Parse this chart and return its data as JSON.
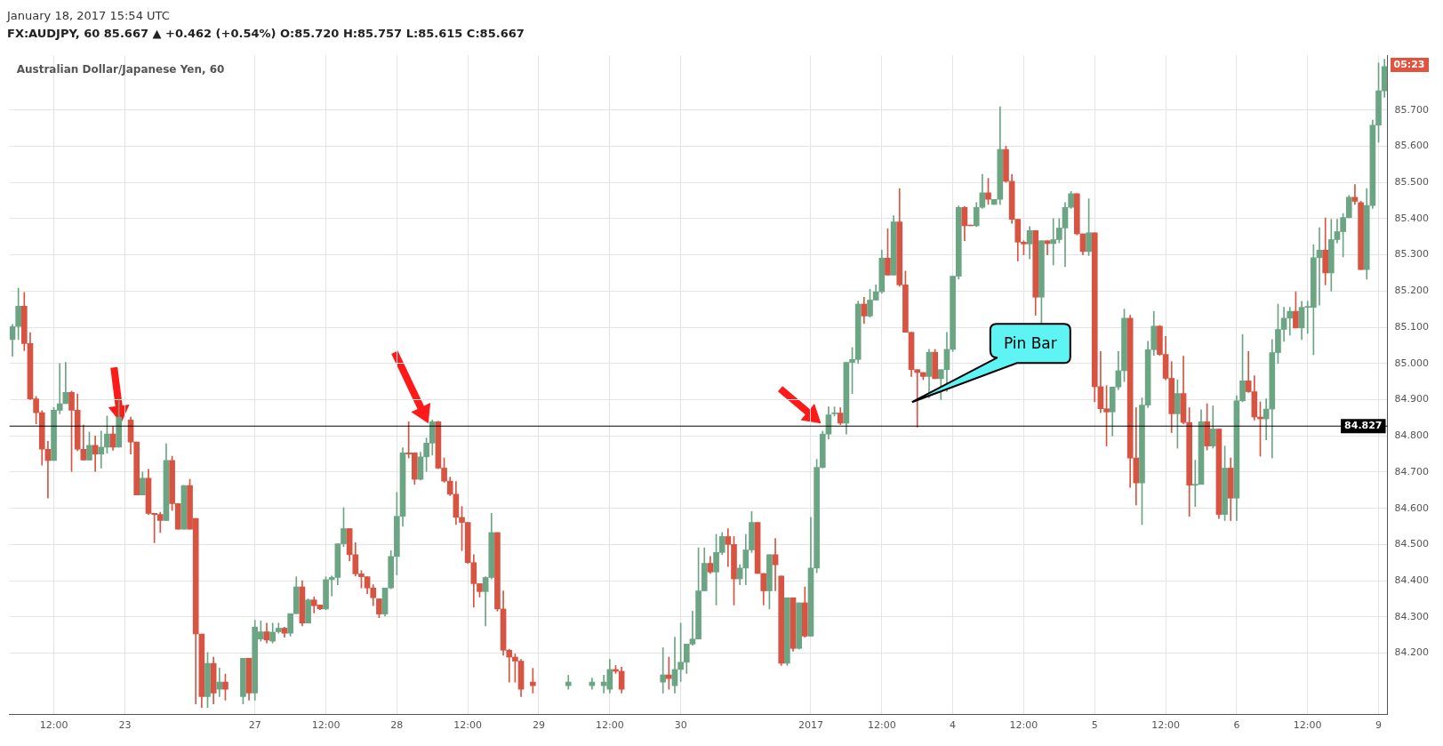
{
  "chart_data": {
    "type": "candlestick",
    "title": "Australian Dollar/Japanese Yen, 60",
    "subtitle": "FX:AUDJPY, 60  85.667 ▲ +0.462 (+0.54%)  O:85.720 H:85.757 L:85.615 C:85.667",
    "annotations": [
      "January 18, 2017 15:54 UTC",
      "Pin Bar",
      "05:23"
    ],
    "grid": true,
    "ylim": [
      84.03,
      85.85
    ],
    "yticks": [
      {
        "value": 84.2,
        "label": "84.200"
      },
      {
        "value": 84.3,
        "label": "84.300"
      },
      {
        "value": 84.4,
        "label": "84.400"
      },
      {
        "value": 84.5,
        "label": "84.500"
      },
      {
        "value": 84.6,
        "label": "84.600"
      },
      {
        "value": 84.7,
        "label": "84.700"
      },
      {
        "value": 84.8,
        "label": "84.800"
      },
      {
        "value": 84.9,
        "label": "84.900"
      },
      {
        "value": 85.0,
        "label": "85.000"
      },
      {
        "value": 85.1,
        "label": "85.100"
      },
      {
        "value": 85.2,
        "label": "85.200"
      },
      {
        "value": 85.3,
        "label": "85.300"
      },
      {
        "value": 85.4,
        "label": "85.400"
      },
      {
        "value": 85.5,
        "label": "85.500"
      },
      {
        "value": 85.6,
        "label": "85.600"
      },
      {
        "value": 85.7,
        "label": "85.700"
      }
    ],
    "ref_lines": [
      {
        "axis": "y",
        "value": 84.827,
        "label": "84.827",
        "color": "#000000"
      }
    ],
    "categories": [
      null,
      null,
      null,
      null,
      null,
      null,
      null,
      "12:00",
      null,
      null,
      null,
      null,
      null,
      null,
      null,
      null,
      null,
      null,
      null,
      "23",
      null,
      null,
      null,
      null,
      null,
      null,
      null,
      null,
      null,
      null,
      null,
      null,
      null,
      null,
      null,
      null,
      null,
      null,
      null,
      null,
      null,
      "27",
      null,
      null,
      null,
      null,
      null,
      null,
      null,
      null,
      null,
      null,
      null,
      "12:00",
      null,
      null,
      null,
      null,
      null,
      null,
      null,
      null,
      null,
      null,
      null,
      "28",
      null,
      null,
      null,
      null,
      null,
      null,
      null,
      null,
      null,
      null,
      null,
      "12:00",
      null,
      null,
      null,
      null,
      null,
      null,
      null,
      null,
      null,
      null,
      null,
      "29",
      null,
      null,
      null,
      null,
      null,
      null,
      null,
      null,
      null,
      null,
      null,
      "12:00",
      null,
      null,
      null,
      null,
      null,
      null,
      null,
      null,
      null,
      null,
      null,
      "30",
      null,
      null,
      null,
      null,
      null,
      null,
      null,
      null,
      null,
      null,
      null,
      null,
      null,
      null,
      null,
      null,
      null,
      null,
      null,
      null,
      null,
      "2017",
      null,
      null,
      null,
      null,
      null,
      null,
      null,
      null,
      null,
      null,
      null,
      "12:00",
      null,
      null,
      null,
      null,
      null,
      null,
      null,
      null,
      null,
      null,
      null,
      "4",
      null,
      null,
      null,
      null,
      null,
      null,
      null,
      null,
      null,
      null,
      null,
      "12:00",
      null,
      null,
      null,
      null,
      null,
      null,
      null,
      null,
      null,
      null,
      null,
      "5",
      null,
      null,
      null,
      null,
      null,
      null,
      null,
      null,
      null,
      null,
      null,
      "12:00",
      null,
      null,
      null,
      null,
      null,
      null,
      null,
      null,
      null,
      null,
      null,
      "6",
      null,
      null,
      null,
      null,
      null,
      null,
      null,
      null,
      null,
      null,
      null,
      "12:00",
      null,
      null,
      null,
      null,
      null,
      null,
      null,
      null,
      null,
      null,
      null,
      "9",
      null
    ],
    "ohlc": [
      [
        85.066,
        85.108,
        85.02,
        85.102
      ],
      [
        85.102,
        85.208,
        85.066,
        85.158
      ],
      [
        85.158,
        85.196,
        85.035,
        85.055
      ],
      [
        85.055,
        85.085,
        84.9,
        84.902
      ],
      [
        84.902,
        84.909,
        84.833,
        84.864
      ],
      [
        84.864,
        84.87,
        84.719,
        84.763
      ],
      [
        84.763,
        84.785,
        84.628,
        84.732
      ],
      [
        84.732,
        84.878,
        84.732,
        84.871
      ],
      [
        84.871,
        85.0,
        84.861,
        84.889
      ],
      [
        84.889,
        85.003,
        84.889,
        84.92
      ],
      [
        84.92,
        84.924,
        84.702,
        84.871
      ],
      [
        84.871,
        84.916,
        84.759,
        84.763
      ],
      [
        84.763,
        84.83,
        84.733,
        84.733
      ],
      [
        84.733,
        84.811,
        84.733,
        84.774
      ],
      [
        84.774,
        84.8,
        84.702,
        84.75
      ],
      [
        84.75,
        84.813,
        84.711,
        84.769
      ],
      [
        84.769,
        84.855,
        84.752,
        84.805
      ],
      [
        84.805,
        84.827,
        84.76,
        84.769
      ],
      [
        84.769,
        84.902,
        84.769,
        84.852
      ],
      null,
      [
        84.844,
        84.852,
        84.75,
        84.783
      ],
      [
        84.783,
        84.783,
        84.637,
        84.637
      ],
      [
        84.637,
        84.7,
        84.637,
        84.683
      ],
      [
        84.683,
        84.708,
        84.583,
        84.586
      ],
      [
        84.586,
        84.586,
        84.505,
        84.583
      ],
      [
        84.583,
        84.589,
        84.533,
        84.566
      ],
      [
        84.566,
        84.778,
        84.566,
        84.732
      ],
      [
        84.732,
        84.744,
        84.594,
        84.613
      ],
      [
        84.613,
        84.613,
        84.542,
        84.542
      ],
      [
        84.542,
        84.663,
        84.542,
        84.663
      ],
      [
        84.663,
        84.68,
        84.542,
        84.542
      ],
      [
        84.572,
        84.572,
        84.06,
        84.253
      ],
      [
        84.253,
        84.253,
        84.05,
        84.08
      ],
      [
        84.08,
        84.202,
        84.05,
        84.172
      ],
      [
        84.172,
        84.189,
        84.06,
        84.09
      ],
      [
        84.1,
        84.159,
        84.08,
        84.12
      ],
      [
        84.12,
        84.142,
        84.07,
        84.1
      ],
      null,
      null,
      [
        84.08,
        84.186,
        84.06,
        84.186
      ],
      [
        84.186,
        84.186,
        84.07,
        84.09
      ],
      [
        84.09,
        84.291,
        84.07,
        84.272
      ],
      [
        84.239,
        84.289,
        84.233,
        84.259
      ],
      [
        84.259,
        84.283,
        84.228,
        84.236
      ],
      [
        84.233,
        84.283,
        84.228,
        84.258
      ],
      [
        84.259,
        84.283,
        84.255,
        84.269
      ],
      [
        84.269,
        84.272,
        84.244,
        84.255
      ],
      [
        84.255,
        84.309,
        84.247,
        84.309
      ],
      [
        84.309,
        84.411,
        84.309,
        84.383
      ],
      [
        84.383,
        84.4,
        84.275,
        84.283
      ],
      [
        84.283,
        84.35,
        84.283,
        84.347
      ],
      [
        84.347,
        84.355,
        84.311,
        84.331
      ],
      [
        84.333,
        84.333,
        84.32,
        84.322
      ],
      [
        84.322,
        84.411,
        84.32,
        84.403
      ],
      [
        84.403,
        84.413,
        84.358,
        84.409
      ],
      [
        84.409,
        84.502,
        84.389,
        84.502
      ],
      [
        84.502,
        84.602,
        84.494,
        84.544
      ],
      [
        84.544,
        84.544,
        84.455,
        84.472
      ],
      [
        84.472,
        84.505,
        84.413,
        84.419
      ],
      [
        84.419,
        84.428,
        84.38,
        84.411
      ],
      [
        84.411,
        84.411,
        84.364,
        84.38
      ],
      [
        84.38,
        84.389,
        84.331,
        84.353
      ],
      [
        84.35,
        84.35,
        84.298,
        84.308
      ],
      [
        84.308,
        84.38,
        84.302,
        84.38
      ],
      [
        84.38,
        84.483,
        84.378,
        84.467
      ],
      [
        84.467,
        84.644,
        84.416,
        84.578
      ],
      [
        84.578,
        84.767,
        84.55,
        84.753
      ],
      [
        84.753,
        84.839,
        84.739,
        84.75
      ],
      [
        84.753,
        84.753,
        84.666,
        84.68
      ],
      [
        84.68,
        84.755,
        84.678,
        84.742
      ],
      [
        84.742,
        84.794,
        84.702,
        84.78
      ],
      [
        84.78,
        84.844,
        84.747,
        84.839
      ],
      [
        84.839,
        84.84,
        84.709,
        84.711
      ],
      [
        84.711,
        84.739,
        84.672,
        84.675
      ],
      [
        84.675,
        84.686,
        84.635,
        84.639
      ],
      [
        84.639,
        84.674,
        84.555,
        84.575
      ],
      [
        84.575,
        84.605,
        84.483,
        84.561
      ],
      [
        84.561,
        84.561,
        84.448,
        84.45
      ],
      [
        84.45,
        84.472,
        84.327,
        84.392
      ],
      [
        84.392,
        84.392,
        84.355,
        84.37
      ],
      [
        84.37,
        84.411,
        84.275,
        84.409
      ],
      [
        84.409,
        84.586,
        84.405,
        84.533
      ],
      [
        84.533,
        84.533,
        84.316,
        84.322
      ],
      [
        84.322,
        84.372,
        84.194,
        84.208
      ],
      [
        84.208,
        84.211,
        84.12,
        84.189
      ],
      [
        84.189,
        84.198,
        84.12,
        84.178
      ],
      [
        84.178,
        84.183,
        84.08,
        84.1
      ],
      null,
      [
        84.12,
        84.158,
        84.09,
        84.11
      ],
      null,
      null,
      null,
      null,
      null,
      [
        84.11,
        84.139,
        84.1,
        84.12
      ],
      null,
      null,
      null,
      [
        84.11,
        84.131,
        84.1,
        84.12
      ],
      null,
      [
        84.11,
        84.139,
        84.09,
        84.12
      ],
      [
        84.1,
        84.183,
        84.09,
        84.155
      ],
      [
        84.155,
        84.166,
        84.144,
        84.15
      ],
      [
        84.15,
        84.161,
        84.09,
        84.1
      ],
      null,
      null,
      null,
      null,
      null,
      null,
      [
        84.12,
        84.215,
        84.09,
        84.14
      ],
      [
        84.14,
        84.189,
        84.1,
        84.13
      ],
      [
        84.11,
        84.244,
        84.09,
        84.155
      ],
      [
        84.155,
        84.283,
        84.122,
        84.175
      ],
      [
        84.175,
        84.225,
        84.144,
        84.225
      ],
      [
        84.225,
        84.316,
        84.222,
        84.239
      ],
      [
        84.239,
        84.491,
        84.239,
        84.372
      ],
      [
        84.372,
        84.491,
        84.372,
        84.448
      ],
      [
        84.448,
        84.467,
        84.42,
        84.424
      ],
      [
        84.424,
        84.528,
        84.333,
        84.478
      ],
      [
        84.478,
        84.533,
        84.472,
        84.522
      ],
      [
        84.522,
        84.544,
        84.439,
        84.5
      ],
      [
        84.5,
        84.522,
        84.333,
        84.405
      ],
      [
        84.405,
        84.444,
        84.389,
        84.435
      ],
      [
        84.435,
        84.528,
        84.389,
        84.485
      ],
      [
        84.485,
        84.591,
        84.478,
        84.561
      ],
      [
        84.561,
        84.561,
        84.42,
        84.42
      ],
      [
        84.42,
        84.42,
        84.333,
        84.372
      ],
      [
        84.372,
        84.472,
        84.322,
        84.472
      ],
      [
        84.472,
        84.517,
        84.372,
        84.444
      ],
      [
        84.413,
        84.413,
        84.166,
        84.172
      ],
      [
        84.172,
        84.353,
        84.166,
        84.353
      ],
      [
        84.353,
        84.353,
        84.205,
        84.213
      ],
      [
        84.213,
        84.339,
        84.211,
        84.339
      ],
      [
        84.339,
        84.383,
        84.244,
        84.247
      ],
      [
        84.247,
        84.575,
        84.247,
        84.435
      ],
      [
        84.435,
        84.735,
        84.422,
        84.713
      ],
      [
        84.713,
        84.813,
        84.711,
        84.805
      ],
      [
        84.805,
        84.88,
        84.791,
        84.858
      ],
      [
        84.861,
        84.88,
        84.855,
        84.863
      ],
      [
        84.863,
        84.878,
        84.831,
        84.835
      ],
      [
        84.835,
        85.003,
        84.805,
        85.003
      ],
      [
        85.003,
        85.044,
        84.917,
        85.011
      ],
      [
        85.011,
        85.172,
        85.0,
        85.164
      ],
      [
        85.164,
        85.183,
        85.111,
        85.131
      ],
      [
        85.131,
        85.205,
        85.128,
        85.175
      ],
      [
        85.175,
        85.217,
        85.175,
        85.198
      ],
      [
        85.198,
        85.313,
        85.194,
        85.291
      ],
      [
        85.291,
        85.372,
        85.244,
        85.244
      ],
      [
        85.244,
        85.408,
        85.244,
        85.391
      ],
      [
        85.391,
        85.483,
        85.213,
        85.217
      ],
      [
        85.217,
        85.255,
        85.086,
        85.086
      ],
      [
        85.086,
        85.086,
        84.964,
        84.983
      ],
      [
        84.983,
        84.983,
        84.824,
        84.975
      ],
      [
        84.975,
        84.975,
        84.955,
        84.964
      ],
      [
        84.964,
        85.039,
        84.905,
        85.031
      ],
      [
        85.031,
        85.039,
        84.958,
        84.958
      ],
      [
        84.958,
        84.983,
        84.9,
        84.983
      ],
      [
        84.983,
        85.086,
        84.922,
        85.039
      ],
      [
        85.039,
        85.241,
        85.033,
        85.241
      ],
      [
        85.241,
        85.435,
        85.233,
        85.431
      ],
      [
        85.431,
        85.433,
        85.339,
        85.38
      ],
      [
        85.382,
        85.382,
        85.38,
        85.38
      ],
      [
        85.38,
        85.444,
        85.378,
        85.431
      ],
      [
        85.431,
        85.522,
        85.428,
        85.471
      ],
      [
        85.471,
        85.511,
        85.439,
        85.453
      ],
      [
        85.439,
        85.453,
        85.439,
        85.453
      ],
      [
        85.453,
        85.709,
        85.439,
        85.591
      ],
      [
        85.591,
        85.6,
        85.5,
        85.503
      ],
      [
        85.503,
        85.522,
        85.387,
        85.398
      ],
      [
        85.398,
        85.398,
        85.283,
        85.335
      ],
      [
        85.335,
        85.339,
        85.3,
        85.33
      ],
      [
        85.33,
        85.378,
        85.289,
        85.367
      ],
      [
        85.367,
        85.367,
        85.133,
        85.183
      ],
      [
        85.183,
        85.339,
        85.111,
        85.339
      ],
      [
        85.339,
        85.339,
        85.3,
        85.331
      ],
      [
        85.331,
        85.4,
        85.272,
        85.342
      ],
      [
        85.342,
        85.4,
        85.333,
        85.374
      ],
      [
        85.374,
        85.444,
        85.267,
        85.431
      ],
      [
        85.431,
        85.475,
        85.428,
        85.469
      ],
      [
        85.469,
        85.469,
        85.355,
        85.358
      ],
      [
        85.358,
        85.358,
        85.3,
        85.309
      ],
      [
        85.309,
        85.455,
        85.298,
        85.361
      ],
      [
        85.361,
        85.361,
        84.894,
        84.936
      ],
      [
        84.936,
        85.033,
        84.864,
        84.875
      ],
      [
        84.875,
        84.939,
        84.772,
        84.866
      ],
      [
        84.866,
        84.935,
        84.8,
        84.935
      ],
      [
        84.935,
        85.033,
        84.928,
        84.98
      ],
      [
        84.98,
        85.15,
        84.95,
        85.125
      ],
      [
        85.125,
        85.133,
        84.658,
        84.739
      ],
      [
        84.739,
        84.878,
        84.609,
        84.67
      ],
      [
        84.67,
        84.905,
        84.555,
        84.885
      ],
      [
        84.885,
        85.061,
        84.878,
        85.038
      ],
      [
        85.038,
        85.144,
        85.022,
        85.103
      ],
      [
        85.103,
        85.105,
        85.022,
        85.025
      ],
      [
        85.025,
        85.075,
        84.955,
        84.959
      ],
      [
        84.959,
        85.005,
        84.809,
        84.861
      ],
      [
        84.861,
        84.955,
        84.766,
        84.917
      ],
      [
        84.917,
        85.02,
        84.833,
        84.837
      ],
      [
        84.837,
        84.878,
        84.578,
        84.664
      ],
      [
        84.664,
        84.733,
        84.605,
        84.666
      ],
      [
        84.666,
        84.872,
        84.666,
        84.839
      ],
      [
        84.839,
        84.889,
        84.761,
        84.772
      ],
      [
        84.772,
        84.883,
        84.766,
        84.819
      ],
      [
        84.819,
        84.819,
        84.572,
        84.583
      ],
      [
        84.583,
        84.772,
        84.566,
        84.711
      ],
      [
        84.711,
        84.739,
        84.566,
        84.628
      ],
      [
        84.628,
        84.911,
        84.566,
        84.897
      ],
      [
        84.897,
        85.08,
        84.894,
        84.952
      ],
      [
        84.952,
        85.033,
        84.92,
        84.922
      ],
      [
        84.922,
        84.966,
        84.844,
        84.852
      ],
      [
        84.852,
        84.894,
        84.744,
        84.847
      ],
      [
        84.847,
        84.902,
        84.789,
        84.874
      ],
      [
        84.874,
        85.066,
        84.739,
        85.03
      ],
      [
        85.03,
        85.164,
        85.0,
        85.094
      ],
      [
        85.094,
        85.155,
        85.061,
        85.125
      ],
      [
        85.125,
        85.155,
        85.078,
        85.144
      ],
      [
        85.144,
        85.198,
        85.098,
        85.098
      ],
      [
        85.098,
        85.172,
        85.066,
        85.155
      ],
      [
        85.155,
        85.172,
        85.083,
        85.155
      ],
      [
        85.155,
        85.328,
        85.024,
        85.292
      ],
      [
        85.292,
        85.375,
        85.161,
        85.313
      ],
      [
        85.313,
        85.402,
        85.217,
        85.25
      ],
      [
        85.25,
        85.398,
        85.2,
        85.342
      ],
      [
        85.342,
        85.398,
        85.333,
        85.364
      ],
      [
        85.364,
        85.414,
        85.294,
        85.403
      ],
      [
        85.403,
        85.464,
        85.402,
        85.459
      ],
      [
        85.459,
        85.494,
        85.439,
        85.448
      ],
      [
        85.444,
        85.448,
        85.259,
        85.259
      ],
      [
        85.259,
        85.483,
        85.233,
        85.436
      ],
      [
        85.436,
        85.672,
        85.428,
        85.658
      ],
      [
        85.658,
        85.83,
        85.611,
        85.753
      ],
      [
        85.753,
        85.84,
        85.735,
        85.82
      ]
    ]
  }
}
